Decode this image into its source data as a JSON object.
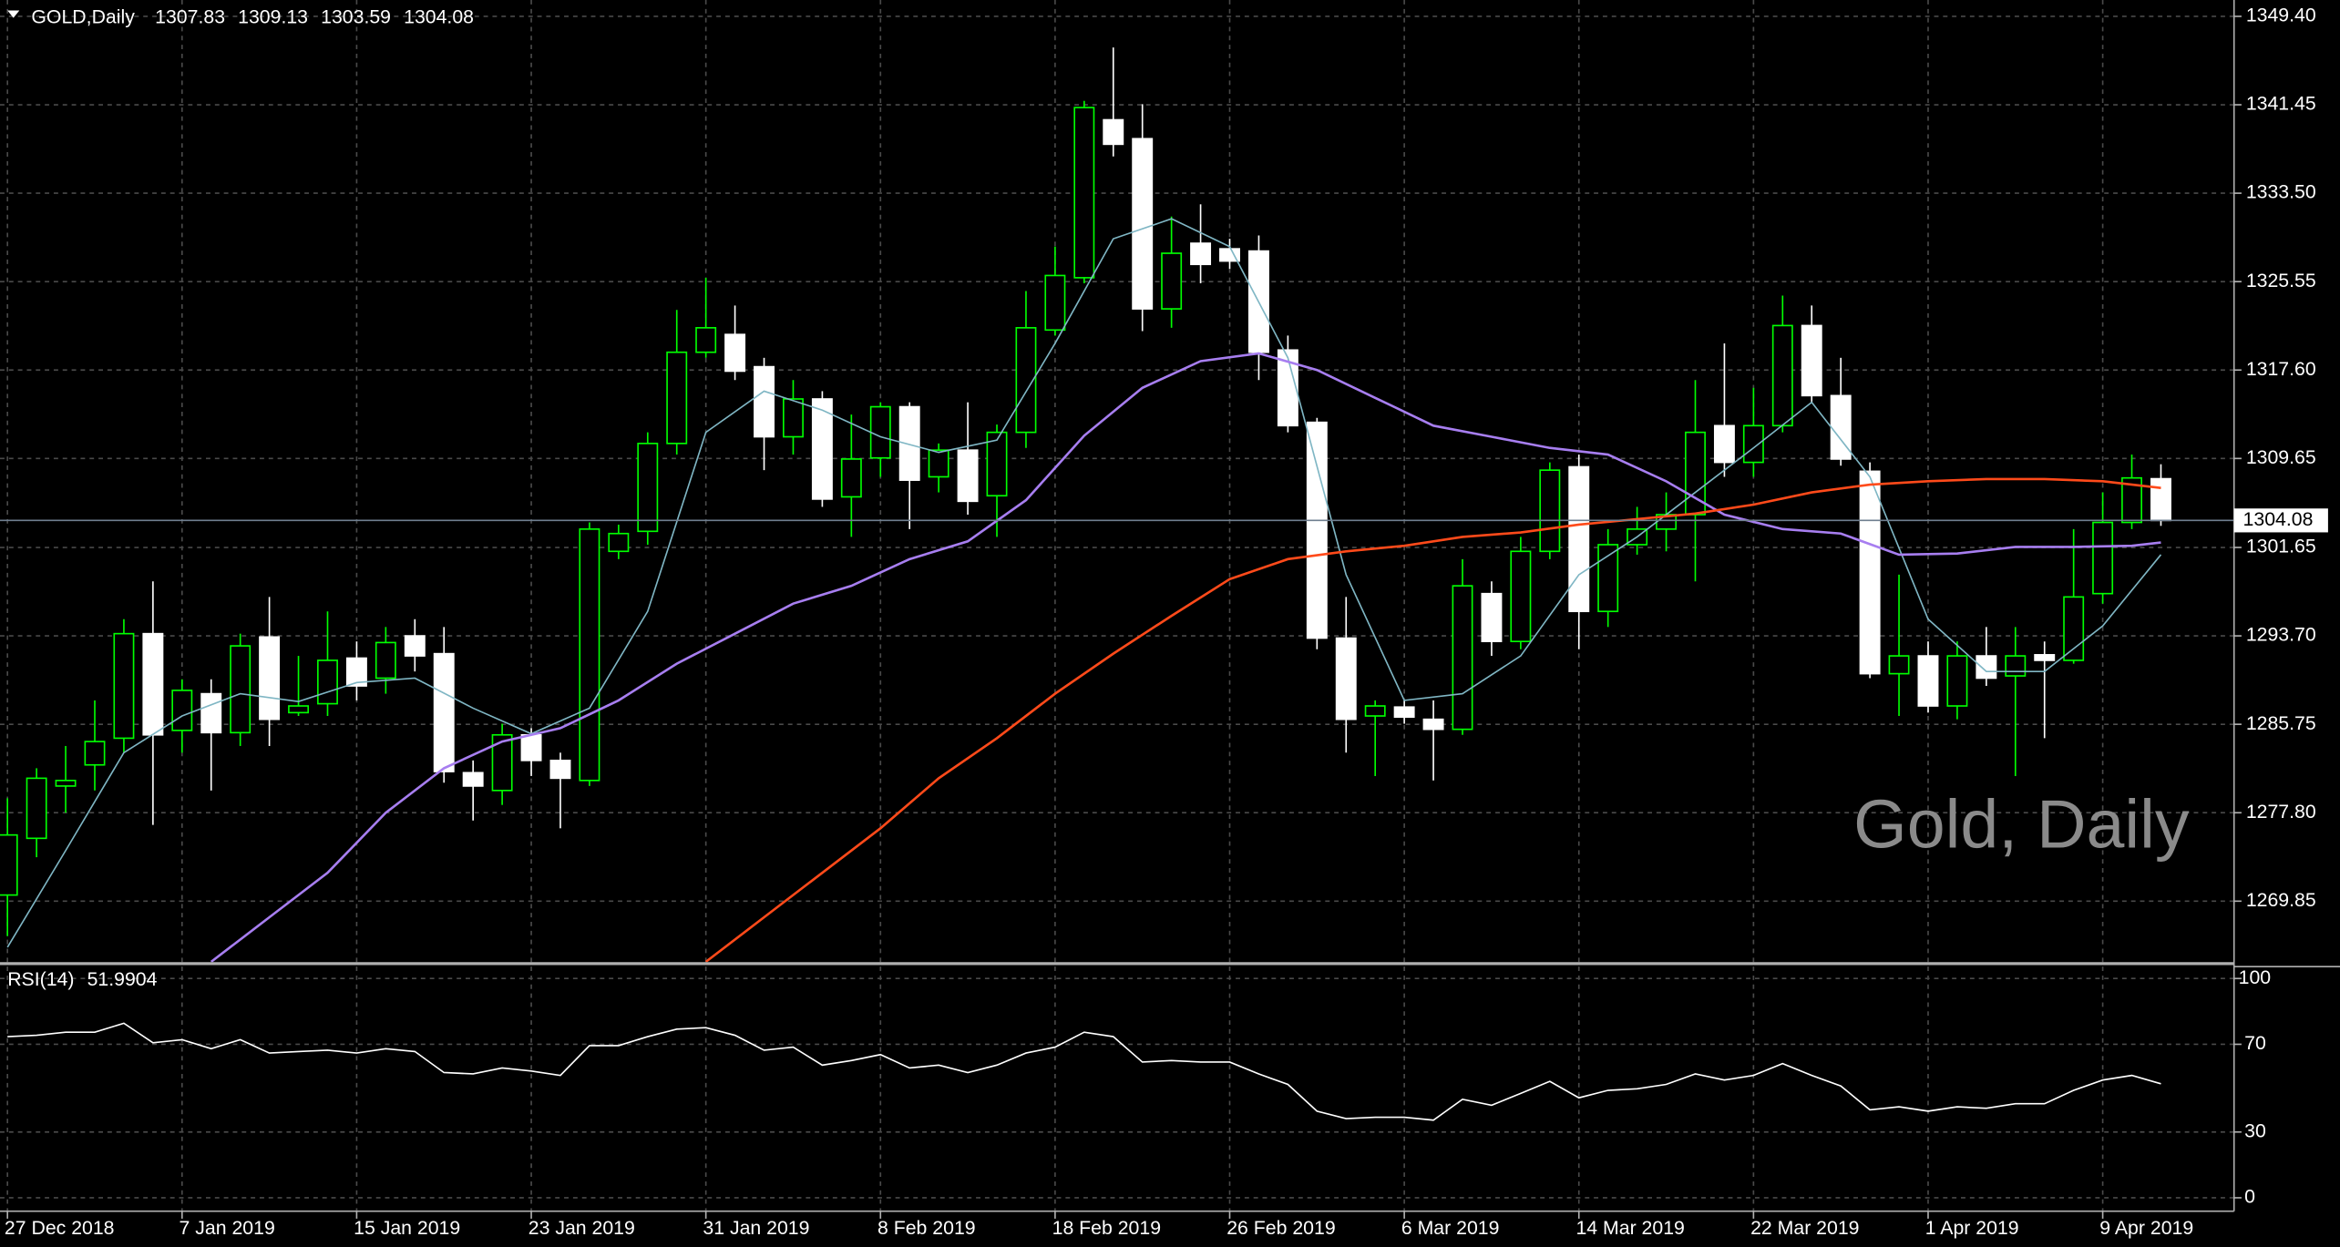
{
  "chart_data": {
    "type": "candlestick",
    "title": "GOLD,Daily",
    "watermark": "Gold, Daily",
    "categories": [
      "27 Dec 2018",
      null,
      null,
      null,
      null,
      null,
      "7 Jan 2019",
      null,
      null,
      null,
      null,
      null,
      "15 Jan 2019",
      null,
      null,
      null,
      null,
      null,
      "23 Jan 2019",
      null,
      null,
      null,
      null,
      null,
      "31 Jan 2019",
      null,
      null,
      null,
      null,
      null,
      "8 Feb 2019",
      null,
      null,
      null,
      null,
      null,
      "18 Feb 2019",
      null,
      null,
      null,
      null,
      null,
      "26 Feb 2019",
      null,
      null,
      null,
      null,
      null,
      "6 Mar 2019",
      null,
      null,
      null,
      null,
      null,
      "14 Mar 2019",
      null,
      null,
      null,
      null,
      null,
      "22 Mar 2019",
      null,
      null,
      null,
      null,
      null,
      "1 Apr 2019",
      null,
      null,
      null,
      null,
      null,
      "9 Apr 2019",
      null,
      null
    ],
    "open": [
      1270.4,
      1275.5,
      1280.2,
      1282.1,
      1284.5,
      1293.9,
      1285.2,
      1288.5,
      1285.0,
      1293.6,
      1286.8,
      1287.6,
      1291.7,
      1289.9,
      1293.7,
      1292.1,
      1281.4,
      1279.8,
      1284.8,
      1282.5,
      1280.7,
      1301.3,
      1303.1,
      1311.0,
      1319.2,
      1320.8,
      1317.9,
      1311.6,
      1315.0,
      1306.2,
      1309.7,
      1314.3,
      1308.0,
      1310.4,
      1306.3,
      1312.0,
      1321.2,
      1325.9,
      1340.1,
      1338.4,
      1323.1,
      1329.0,
      1328.5,
      1328.3,
      1319.4,
      1312.9,
      1293.5,
      1286.5,
      1287.3,
      1286.2,
      1285.3,
      1297.5,
      1293.2,
      1301.3,
      1308.9,
      1295.9,
      1301.9,
      1303.3,
      1304.6,
      1312.6,
      1309.3,
      1312.6,
      1321.6,
      1315.3,
      1308.5,
      1290.3,
      1291.9,
      1287.4,
      1291.9,
      1290.1,
      1292.0,
      1291.5,
      1297.5,
      1303.9,
      1307.83
    ],
    "high": [
      1279.1,
      1281.8,
      1283.8,
      1287.9,
      1295.2,
      1298.6,
      1289.8,
      1289.8,
      1293.9,
      1297.2,
      1291.9,
      1295.9,
      1293.2,
      1294.5,
      1295.2,
      1294.5,
      1282.5,
      1285.8,
      1285.4,
      1283.2,
      1303.9,
      1303.7,
      1312.0,
      1323.0,
      1325.9,
      1323.4,
      1318.7,
      1316.7,
      1315.7,
      1313.6,
      1314.7,
      1314.7,
      1311.0,
      1314.7,
      1312.7,
      1324.7,
      1328.7,
      1341.8,
      1346.6,
      1341.5,
      1331.4,
      1332.5,
      1329.4,
      1329.7,
      1320.7,
      1313.3,
      1297.2,
      1287.9,
      1287.9,
      1287.9,
      1300.6,
      1298.6,
      1302.6,
      1309.3,
      1310.0,
      1303.3,
      1305.3,
      1306.6,
      1316.7,
      1320.0,
      1316.0,
      1324.3,
      1323.4,
      1318.7,
      1309.3,
      1299.2,
      1293.2,
      1293.2,
      1294.5,
      1294.5,
      1293.2,
      1303.3,
      1306.6,
      1310.0,
      1309.13
    ],
    "low": [
      1266.7,
      1273.8,
      1277.8,
      1279.8,
      1283.2,
      1276.7,
      1283.2,
      1279.8,
      1283.8,
      1283.8,
      1286.5,
      1286.5,
      1287.9,
      1288.5,
      1290.5,
      1280.5,
      1277.1,
      1278.5,
      1281.1,
      1276.4,
      1280.2,
      1300.6,
      1301.9,
      1310.0,
      1318.7,
      1316.7,
      1308.6,
      1310.0,
      1305.3,
      1302.6,
      1308.0,
      1303.3,
      1306.6,
      1304.6,
      1302.6,
      1310.6,
      1320.7,
      1325.4,
      1336.8,
      1321.1,
      1321.4,
      1325.4,
      1326.7,
      1316.7,
      1312.0,
      1292.5,
      1283.2,
      1281.1,
      1285.8,
      1280.7,
      1284.8,
      1291.9,
      1292.5,
      1300.6,
      1292.5,
      1294.5,
      1301.0,
      1301.3,
      1298.6,
      1308.0,
      1308.0,
      1312.0,
      1314.7,
      1309.0,
      1289.9,
      1286.5,
      1286.8,
      1286.2,
      1289.2,
      1281.1,
      1284.5,
      1291.2,
      1296.6,
      1303.3,
      1303.59
    ],
    "close": [
      1275.8,
      1280.9,
      1280.7,
      1284.2,
      1293.9,
      1284.8,
      1288.8,
      1285.0,
      1292.8,
      1286.2,
      1287.4,
      1291.5,
      1289.2,
      1293.1,
      1291.9,
      1281.5,
      1280.2,
      1284.8,
      1282.5,
      1280.9,
      1303.3,
      1302.9,
      1311.0,
      1319.2,
      1321.4,
      1317.5,
      1311.6,
      1315.0,
      1306.0,
      1309.6,
      1314.3,
      1307.7,
      1310.4,
      1305.8,
      1312.0,
      1321.4,
      1326.1,
      1341.2,
      1337.9,
      1323.1,
      1328.1,
      1327.1,
      1327.4,
      1319.2,
      1312.6,
      1293.5,
      1286.2,
      1287.4,
      1286.4,
      1285.3,
      1298.2,
      1293.2,
      1301.3,
      1308.6,
      1295.9,
      1301.9,
      1303.3,
      1304.6,
      1312.0,
      1309.3,
      1312.6,
      1321.6,
      1315.3,
      1309.6,
      1290.3,
      1291.9,
      1287.4,
      1291.9,
      1289.9,
      1291.9,
      1291.5,
      1297.2,
      1303.9,
      1307.9,
      1304.08
    ],
    "up_color": "#00ff00",
    "down_color": "#ffffff",
    "ylim": [
      1264.37,
      1350.87
    ],
    "yticks": [
      {
        "value": 1349.4,
        "label": "1349.40"
      },
      1341.45,
      {
        "value": 1333.5,
        "label": "1333.50"
      },
      1325.55,
      {
        "value": 1317.6,
        "label": "1317.60"
      },
      1309.65,
      1301.65,
      {
        "value": 1293.7,
        "label": "1293.70"
      },
      1285.75,
      {
        "value": 1277.8,
        "label": "1277.80"
      },
      1269.85
    ],
    "grid": true,
    "overlays": [
      {
        "color": "#7fb6c4",
        "x": [
          0,
          2,
          4,
          6,
          8,
          10,
          12,
          14,
          16,
          18,
          20,
          22,
          24,
          26,
          28,
          30,
          32,
          34,
          36,
          38,
          40,
          42,
          44,
          46,
          48,
          50,
          52,
          54,
          56,
          58,
          60,
          62,
          64,
          66,
          68,
          70,
          72,
          74
        ],
        "values": [
          1265.7,
          1274.4,
          1283.2,
          1286.5,
          1288.5,
          1287.8,
          1289.5,
          1289.9,
          1287.2,
          1284.9,
          1287.2,
          1295.9,
          1312.0,
          1315.7,
          1314.0,
          1311.6,
          1310.2,
          1311.3,
          1320.0,
          1329.4,
          1331.2,
          1328.7,
          1318.7,
          1299.2,
          1287.9,
          1288.5,
          1291.9,
          1299.2,
          1302.6,
          1306.6,
          1310.6,
          1314.7,
          1308.0,
          1295.2,
          1290.5,
          1290.5,
          1294.6,
          1301.0
        ]
      },
      {
        "color": "#a77ef0",
        "x": [
          7,
          9,
          11,
          13,
          15,
          17,
          19,
          21,
          23,
          25,
          27,
          29,
          31,
          33,
          35,
          37,
          39,
          41,
          43,
          45,
          47,
          49,
          51,
          53,
          55,
          57,
          59,
          61,
          63,
          65,
          67,
          69,
          71,
          73,
          74
        ],
        "values": [
          1264.4,
          1268.4,
          1272.4,
          1277.8,
          1281.8,
          1284.2,
          1285.4,
          1287.9,
          1291.2,
          1293.9,
          1296.6,
          1298.2,
          1300.6,
          1302.2,
          1305.9,
          1311.7,
          1316.0,
          1318.4,
          1319.1,
          1317.6,
          1315.1,
          1312.6,
          1311.6,
          1310.6,
          1310.0,
          1307.6,
          1304.6,
          1303.3,
          1302.9,
          1301.0,
          1301.1,
          1301.7,
          1301.7,
          1301.8,
          1302.1
        ]
      },
      {
        "color": "#ff4a1a",
        "x": [
          24,
          26,
          28,
          30,
          32,
          34,
          36,
          38,
          40,
          42,
          44,
          46,
          48,
          50,
          52,
          54,
          56,
          58,
          60,
          62,
          64,
          66,
          68,
          70,
          72,
          74
        ],
        "values": [
          1264.4,
          1268.4,
          1272.4,
          1276.4,
          1280.9,
          1284.5,
          1288.5,
          1292.1,
          1295.5,
          1298.8,
          1300.6,
          1301.3,
          1301.8,
          1302.6,
          1303.0,
          1303.7,
          1304.2,
          1304.7,
          1305.5,
          1306.6,
          1307.3,
          1307.6,
          1307.8,
          1307.8,
          1307.6,
          1307.0
        ]
      }
    ],
    "rsi": {
      "title": "RSI(14)",
      "color": "#ffffff",
      "values": [
        73.5,
        74.1,
        75.5,
        75.5,
        79.6,
        70.7,
        72.1,
        68.0,
        72.1,
        66.0,
        66.7,
        67.3,
        66.0,
        68.0,
        66.7,
        57.1,
        56.5,
        59.2,
        57.8,
        55.8,
        69.4,
        69.4,
        73.5,
        76.9,
        77.6,
        74.1,
        67.3,
        68.7,
        60.5,
        62.6,
        65.3,
        59.2,
        60.5,
        57.1,
        60.5,
        66.0,
        68.7,
        75.5,
        73.5,
        61.9,
        62.6,
        61.9,
        61.9,
        56.5,
        51.7,
        39.5,
        36.1,
        36.7,
        36.7,
        35.4,
        44.9,
        42.2,
        47.6,
        53.1,
        45.6,
        49.0,
        49.7,
        51.7,
        56.5,
        53.7,
        55.8,
        61.2,
        55.8,
        51.0,
        40.1,
        41.5,
        39.5,
        41.5,
        40.8,
        42.9,
        42.9,
        49.0,
        53.7,
        55.8,
        51.9904
      ],
      "ylim": [
        0,
        100
      ],
      "yticks": [
        100,
        70,
        30,
        0
      ]
    }
  }
}
